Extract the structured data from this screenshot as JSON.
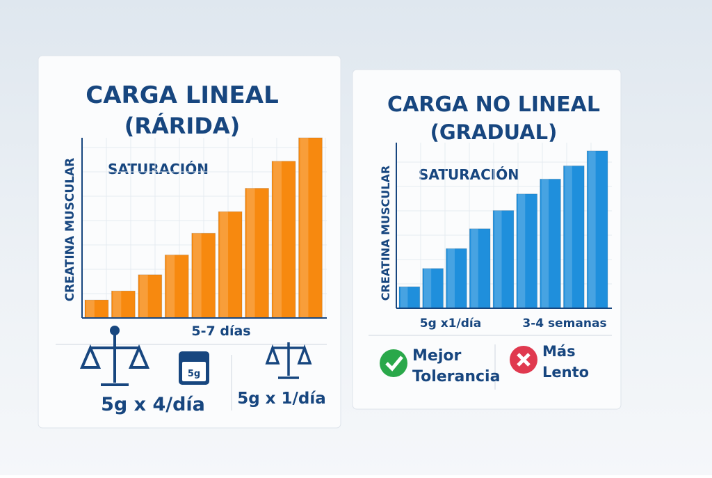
{
  "chart_data": [
    {
      "type": "bar",
      "title": [
        "CARGA LINEAL",
        "(RÁRIDA)"
      ],
      "y_label": "CREATINA MUSCULAR",
      "annotation": "SATURACIÓN",
      "x_label": "5-7 días",
      "values": [
        10,
        15,
        24,
        35,
        47,
        59,
        72,
        87,
        100
      ],
      "color": "#f7890f",
      "ylim": [
        0,
        100
      ],
      "footer": {
        "icon_label": "5g",
        "left": "5g x 4/día",
        "right": "5g x 1/día"
      }
    },
    {
      "type": "bar",
      "title": [
        "CARGA NO LINEAL",
        "(GRADUAL)"
      ],
      "y_label": "CREATINA MUSCULAR",
      "annotation": "SATURACIÓN",
      "x_labels": [
        "5g x1/día",
        "3-4 semanas"
      ],
      "values": [
        13,
        24,
        36,
        48,
        59,
        69,
        78,
        86,
        95
      ],
      "color": "#1f8fdc",
      "ylim": [
        0,
        100
      ],
      "footer": {
        "pro": [
          "Mejor",
          "Tolerancia"
        ],
        "con": [
          "Más",
          "Lento"
        ]
      }
    }
  ]
}
